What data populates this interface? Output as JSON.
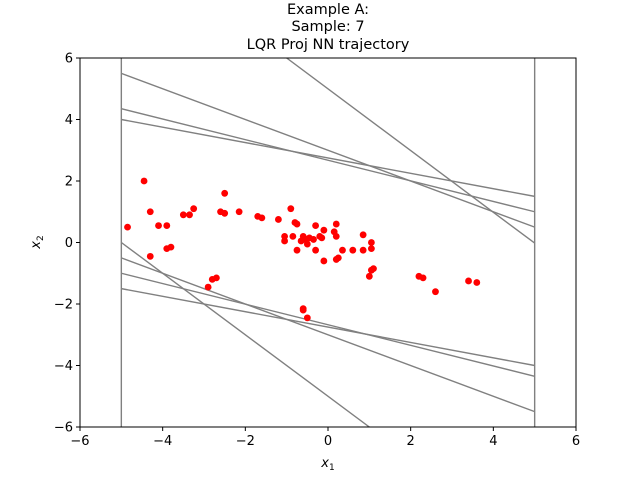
{
  "chart_data": {
    "type": "scatter",
    "title_lines": [
      "Example A:",
      "Sample: 7",
      "LQR Proj NN trajectory"
    ],
    "xlabel": {
      "var": "x",
      "sub": "1"
    },
    "ylabel": {
      "var": "x",
      "sub": "2"
    },
    "xlim": [
      -6,
      6
    ],
    "ylim": [
      -6,
      6
    ],
    "xticks": [
      -6,
      -4,
      -2,
      0,
      2,
      4,
      6
    ],
    "yticks": [
      -6,
      -4,
      -2,
      0,
      2,
      4,
      6
    ],
    "xtick_labels": [
      "−6",
      "−4",
      "−2",
      "0",
      "2",
      "4",
      "6"
    ],
    "ytick_labels": [
      "−6",
      "−4",
      "−2",
      "0",
      "2",
      "4",
      "6"
    ],
    "grid": false,
    "colors": {
      "points": "#ff0000",
      "lines": "#808080"
    },
    "constraint_lines": [
      [
        [
          -5,
          -6
        ],
        [
          -5,
          6
        ]
      ],
      [
        [
          5,
          -6
        ],
        [
          5,
          6
        ]
      ],
      [
        [
          -5,
          5.5
        ],
        [
          5,
          0.5
        ]
      ],
      [
        [
          -5,
          4.35
        ],
        [
          5,
          1.0
        ]
      ],
      [
        [
          -5,
          4.0
        ],
        [
          5,
          1.5
        ]
      ],
      [
        [
          -1.0,
          6.0
        ],
        [
          5,
          -0.02
        ]
      ],
      [
        [
          -5,
          0.0
        ],
        [
          1.0,
          -6.0
        ]
      ],
      [
        [
          -5,
          -0.5
        ],
        [
          5,
          -5.5
        ]
      ],
      [
        [
          -5,
          -1.0
        ],
        [
          5,
          -4.35
        ]
      ],
      [
        [
          -5,
          -1.5
        ],
        [
          5,
          -4.0
        ]
      ]
    ],
    "points": [
      [
        -4.45,
        2.0
      ],
      [
        -4.85,
        0.5
      ],
      [
        -4.3,
        1.0
      ],
      [
        -4.1,
        0.55
      ],
      [
        -3.9,
        0.55
      ],
      [
        -4.3,
        -0.45
      ],
      [
        -3.9,
        -0.2
      ],
      [
        -3.8,
        -0.15
      ],
      [
        -3.5,
        0.9
      ],
      [
        -3.35,
        0.9
      ],
      [
        -3.25,
        1.1
      ],
      [
        -2.6,
        1.0
      ],
      [
        -2.5,
        0.95
      ],
      [
        -2.5,
        1.6
      ],
      [
        -2.15,
        1.0
      ],
      [
        -1.7,
        0.85
      ],
      [
        -1.6,
        0.8
      ],
      [
        -1.2,
        0.75
      ],
      [
        -0.9,
        1.1
      ],
      [
        -0.8,
        0.65
      ],
      [
        -0.75,
        0.6
      ],
      [
        -2.8,
        -1.2
      ],
      [
        -2.7,
        -1.15
      ],
      [
        -2.9,
        -1.45
      ],
      [
        -1.05,
        0.2
      ],
      [
        -1.05,
        0.05
      ],
      [
        -0.85,
        0.2
      ],
      [
        -0.75,
        -0.25
      ],
      [
        -0.65,
        0.05
      ],
      [
        -0.6,
        0.2
      ],
      [
        -0.55,
        0.1
      ],
      [
        -0.5,
        -0.05
      ],
      [
        -0.45,
        0.15
      ],
      [
        -0.35,
        0.1
      ],
      [
        -0.3,
        0.55
      ],
      [
        -0.3,
        -0.25
      ],
      [
        -0.2,
        0.2
      ],
      [
        -0.15,
        0.15
      ],
      [
        -0.1,
        0.4
      ],
      [
        -0.1,
        -0.6
      ],
      [
        0.15,
        0.35
      ],
      [
        0.2,
        0.2
      ],
      [
        0.2,
        0.6
      ],
      [
        0.2,
        -0.55
      ],
      [
        0.25,
        -0.5
      ],
      [
        0.35,
        -0.25
      ],
      [
        0.6,
        -0.25
      ],
      [
        0.85,
        -0.25
      ],
      [
        0.85,
        0.25
      ],
      [
        1.05,
        -0.2
      ],
      [
        1.05,
        0.0
      ],
      [
        1.0,
        -1.1
      ],
      [
        1.1,
        -0.85
      ],
      [
        1.05,
        -0.9
      ],
      [
        2.2,
        -1.1
      ],
      [
        2.3,
        -1.15
      ],
      [
        2.6,
        -1.6
      ],
      [
        3.4,
        -1.25
      ],
      [
        3.6,
        -1.3
      ],
      [
        -0.6,
        -2.15
      ],
      [
        -0.6,
        -2.2
      ],
      [
        -0.5,
        -2.45
      ]
    ]
  }
}
